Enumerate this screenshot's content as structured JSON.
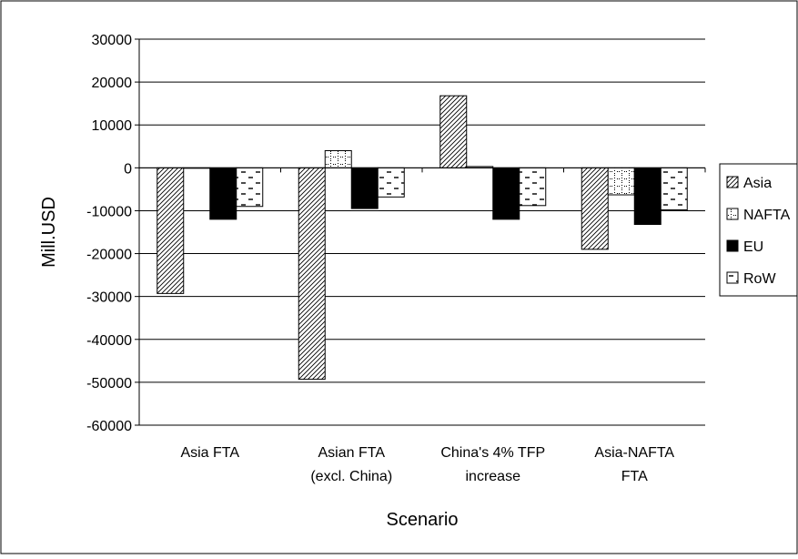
{
  "chart_data": {
    "type": "bar",
    "title": "",
    "xlabel": "Scenario",
    "ylabel": "Mill.USD",
    "ylim": [
      -60000,
      30000
    ],
    "yticks": [
      30000,
      20000,
      10000,
      0,
      -10000,
      -20000,
      -30000,
      -40000,
      -50000,
      -60000
    ],
    "grid": true,
    "legend_position": "right",
    "categories": [
      [
        "Asia FTA"
      ],
      [
        "Asian FTA",
        "(excl. China)"
      ],
      [
        "China's 4% TFP",
        "increase"
      ],
      [
        "Asia-NAFTA",
        "FTA"
      ]
    ],
    "series": [
      {
        "name": "Asia",
        "values": [
          -29300,
          -49300,
          16800,
          -19000
        ],
        "pattern": "diagonal-hatch"
      },
      {
        "name": "NAFTA",
        "values": [
          0,
          4000,
          300,
          -6300
        ],
        "pattern": "dotted-cross"
      },
      {
        "name": "EU",
        "values": [
          -12000,
          -9500,
          -12000,
          -13200
        ],
        "pattern": "solid",
        "color": "#000000"
      },
      {
        "name": "RoW",
        "values": [
          -9000,
          -6800,
          -8800,
          -9800
        ],
        "pattern": "dashes"
      }
    ]
  }
}
